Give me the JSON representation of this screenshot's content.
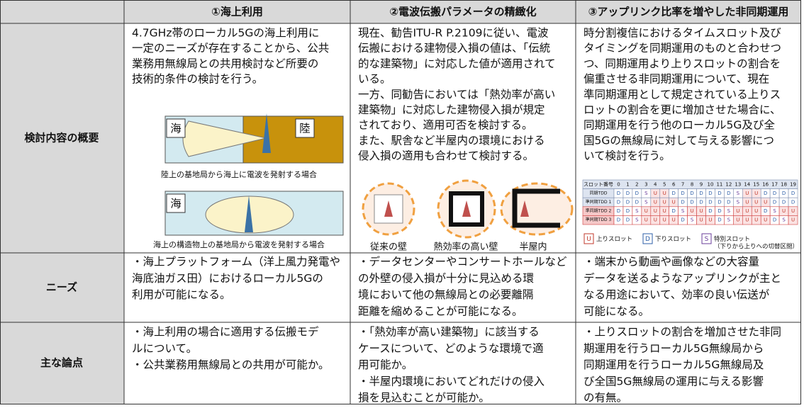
{
  "table": {
    "columns": [
      "①海上利用",
      "②電波伝搬パラメータの精緻化",
      "③アップリンク比率を増やした非同期運用"
    ],
    "rows": [
      {
        "label": "検討内容の概要",
        "cells": [
          {
            "lines": [
              "4.7GHz帯のローカル5Gの海上利用に",
              "一定のニーズが存在することから、公共",
              "業務用無線局との共用検討など所要の",
              "技術的条件の検討を行う。"
            ]
          },
          {
            "lines": [
              "現在、勧告ITU-R P.2109に従い、電波",
              "伝搬における建物侵入損の値は、「伝統",
              "的な建築物」に対応した値が適用されて",
              "いる。",
              "一方、同勧告においては「熱効率が高い",
              "建築物」に対応した建物侵入損が規定",
              "されており、適用可否を検討する。",
              "また、駅舎など半屋内の環境における",
              "侵入損の適用も合わせて検討する。"
            ]
          },
          {
            "lines": [
              "時分割複信におけるタイムスロット及び",
              "タイミングを同期運用のものと合わせつ",
              "つ、同期運用より上りスロットの割合を",
              "偏重させる非同期運用について、現在",
              "準同期運用として規定されている上りス",
              "ロットの割合を更に増加させた場合に、",
              "同期運用を行う他のローカル5G及び全",
              "国5Gの無線局に対して与える影響につ",
              "いて検討を行う。"
            ]
          }
        ]
      },
      {
        "label": "ニーズ",
        "cells": [
          {
            "lines": [
              "・海上プラットフォーム（洋上風力発電や",
              "海底油ガス田）におけるローカル5Gの",
              "利用が可能になる。"
            ]
          },
          {
            "lines": [
              "・データセンターやコンサートホールなど",
              "の外壁の侵入損が十分に見込める環",
              "境において他の無線局との必要離隔",
              "距離を縮めることが可能になる。"
            ]
          },
          {
            "lines": [
              "・端末から動画や画像などの大容量",
              "データを送るようなアップリンクが主と",
              "なる用途において、効率の良い伝送が",
              "可能になる。"
            ]
          }
        ]
      },
      {
        "label": "主な論点",
        "cells": [
          {
            "lines": [
              "・海上利用の場合に適用する伝搬モデ",
              "ルについて。",
              "・公共業務用無線局との共用が可能か。"
            ]
          },
          {
            "lines": [
              "・「熱効率が高い建築物」に該当する",
              "ケースについて、どのような環境で適",
              "用可能か。",
              "・半屋内環境においてどれだけの侵入",
              "損を見込むことが可能か。"
            ]
          },
          {
            "lines": [
              "・上りスロットの割合を増加させた非同",
              "期運用を行うローカル5G無線局から",
              "同期運用を行うローカル5G無線局及",
              "び全国5G無線局の運用に与える影響",
              "の有無。"
            ]
          }
        ]
      }
    ]
  },
  "maritime": {
    "panels": [
      {
        "labels": [
          "海",
          "陸"
        ],
        "caption": "陸上の基地局から海上に電波を発射する場合"
      },
      {
        "labels": [
          "海"
        ],
        "caption": "海上の構造物上の基地局から電波を発射する場合"
      }
    ]
  },
  "walls": {
    "captions": [
      "従来の壁",
      "熱効率の高い壁",
      "半屋内"
    ]
  },
  "slots": {
    "header": "スロット番号",
    "numbers": [
      0,
      1,
      2,
      3,
      4,
      5,
      6,
      7,
      8,
      9,
      10,
      11,
      12,
      13,
      14,
      15,
      16,
      17,
      18,
      19
    ],
    "rows": [
      {
        "name": "同期TDD",
        "slots": [
          "D",
          "D",
          "D",
          "S",
          "U",
          "U",
          "D",
          "D",
          "D",
          "D",
          "D",
          "D",
          "D",
          "S",
          "U",
          "U",
          "D",
          "D",
          "D",
          "D"
        ]
      },
      {
        "name": "準同期TDD 1",
        "slots": [
          "D",
          "D",
          "D",
          "S",
          "U",
          "U",
          "U",
          "D",
          "D",
          "D",
          "D",
          "D",
          "D",
          "S",
          "U",
          "U",
          "U",
          "D",
          "D",
          "D"
        ]
      },
      {
        "name": "準同期TDD 2",
        "slots": [
          "D",
          "D",
          "S",
          "U",
          "U",
          "U",
          "D",
          "S",
          "U",
          "U",
          "D",
          "D",
          "S",
          "U",
          "U",
          "U",
          "D",
          "S",
          "U",
          "U"
        ]
      },
      {
        "name": "準同期TDD 3",
        "slots": [
          "D",
          "D",
          "S",
          "U",
          "U",
          "U",
          "U",
          "D",
          "S",
          "U",
          "U",
          "D",
          "S",
          "U",
          "U",
          "U",
          "U",
          "D",
          "S",
          "U"
        ]
      }
    ],
    "legend": [
      {
        "key": "U",
        "text": "上りスロット"
      },
      {
        "key": "D",
        "text": "下りスロット"
      },
      {
        "key": "S",
        "text": "特別スロット",
        "note": "（下りから上りへの切替区間）"
      }
    ]
  }
}
